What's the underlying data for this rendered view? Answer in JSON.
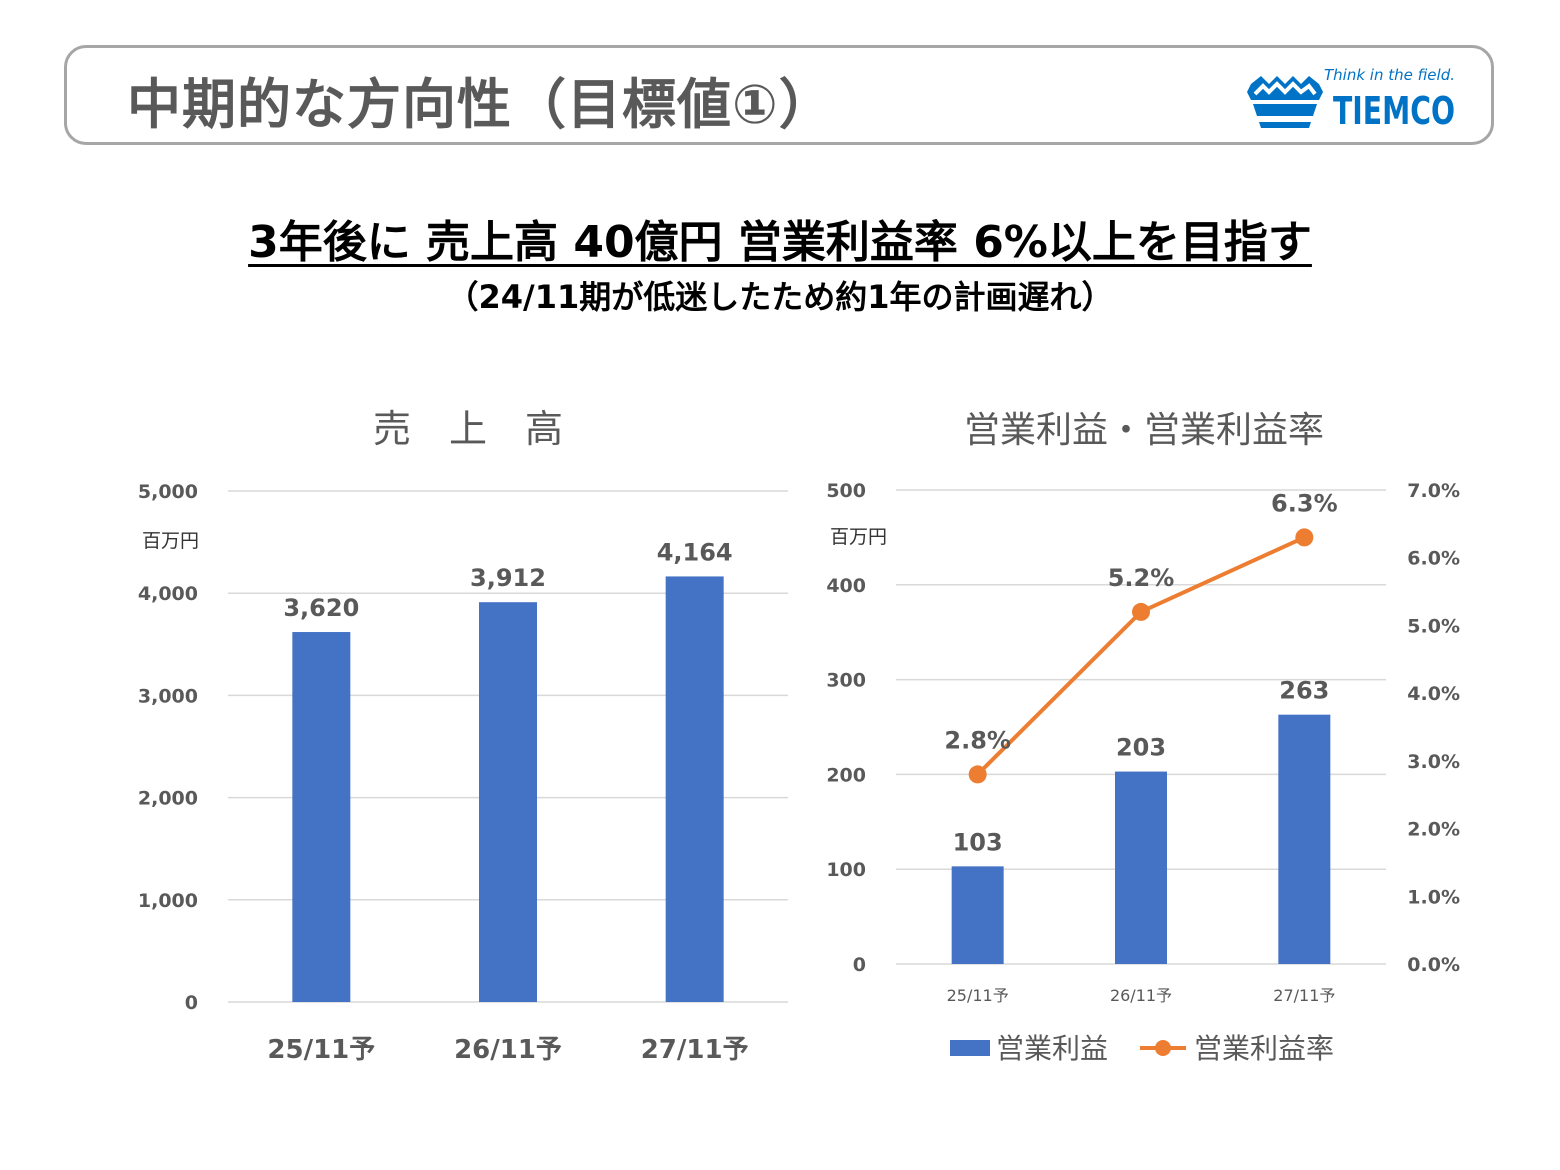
{
  "page": {
    "title": "中期的な方向性（目標値①）",
    "headline": "3年後に 売上高 40億円  営業利益率 6%以上を目指す",
    "subline": "（24/11期が低迷したため約1年の計画遅れ）"
  },
  "logo": {
    "tagline": "Think in the field.",
    "brand": "TIEMCO",
    "color": "#0073c6"
  },
  "colors": {
    "bar": "#4472c4",
    "line": "#ed7d31",
    "grid": "#d9d9d9",
    "axis_text": "#595959",
    "title_text": "#595959"
  },
  "chart_data": [
    {
      "type": "bar",
      "title": "売　上　高",
      "unit_label": "百万円",
      "categories": [
        "25/11予",
        "26/11予",
        "27/11予"
      ],
      "values": [
        3620,
        3912,
        4164
      ],
      "value_labels": [
        "3,620",
        "3,912",
        "4,164"
      ],
      "ylim": [
        0,
        5000
      ],
      "yticks": [
        0,
        1000,
        2000,
        3000,
        4000,
        5000
      ],
      "ytick_labels": [
        "0",
        "1,000",
        "2,000",
        "3,000",
        "4,000",
        "5,000"
      ],
      "grid": true
    },
    {
      "type": "bar+line",
      "title": "営業利益・営業利益率",
      "unit_label": "百万円",
      "categories": [
        "25/11予",
        "26/11予",
        "27/11予"
      ],
      "series": [
        {
          "name": "営業利益",
          "type": "bar",
          "axis": "left",
          "values": [
            103,
            203,
            263
          ],
          "labels": [
            "103",
            "203",
            "263"
          ]
        },
        {
          "name": "営業利益率",
          "type": "line",
          "axis": "right",
          "values": [
            2.8,
            5.2,
            6.3
          ],
          "labels": [
            "2.8%",
            "5.2%",
            "6.3%"
          ]
        }
      ],
      "ylim_left": [
        0,
        500
      ],
      "yticks_left": [
        0,
        100,
        200,
        300,
        400,
        500
      ],
      "ytick_labels_left": [
        "0",
        "100",
        "200",
        "300",
        "400",
        "500"
      ],
      "ylim_right": [
        0,
        7
      ],
      "yticks_right": [
        0,
        1,
        2,
        3,
        4,
        5,
        6,
        7
      ],
      "ytick_labels_right": [
        "0.0%",
        "1.0%",
        "2.0%",
        "3.0%",
        "4.0%",
        "5.0%",
        "6.0%",
        "7.0%"
      ],
      "legend": "bottom",
      "grid": true
    }
  ]
}
